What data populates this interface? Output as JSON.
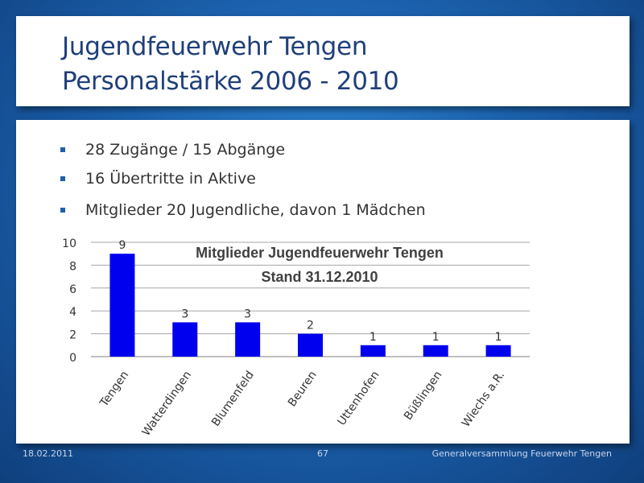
{
  "title": {
    "line1": "Jugendfeuerwehr Tengen",
    "line2": "Personalstärke 2006 - 2010"
  },
  "bullets": [
    "28 Zugänge / 15 Abgänge",
    "16 Übertritte in Aktive",
    "Mitglieder 20 Jugendliche, davon 1 Mädchen"
  ],
  "footer": {
    "date": "18.02.2011",
    "page": "67",
    "organization": "Generalversammlung Feuerwehr Tengen"
  },
  "colors": {
    "bar": "#0000ee",
    "title": "#1f3f7a"
  },
  "chart_data": {
    "type": "bar",
    "title": "Mitglieder Jugendfeuerwehr Tengen",
    "subtitle": "Stand 31.12.2010",
    "categories": [
      "Tengen",
      "Watterdingen",
      "Blumenfeld",
      "Beuren",
      "Uttenhofen",
      "Büßlingen",
      "Wiechs a.R."
    ],
    "values": [
      9,
      3,
      3,
      2,
      1,
      1,
      1
    ],
    "ylim": [
      0,
      10
    ],
    "yticks": [
      0,
      2,
      4,
      6,
      8,
      10
    ],
    "grid": true,
    "data_labels": true
  }
}
